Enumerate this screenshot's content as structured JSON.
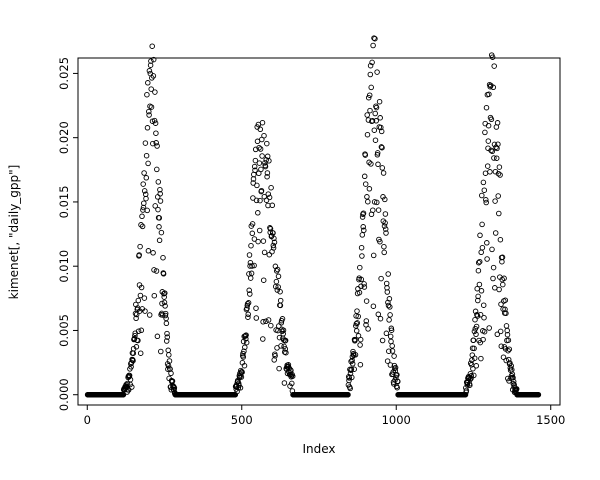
{
  "figure": {
    "background": "#ffffff",
    "point_color": "#000000"
  },
  "chart_data": {
    "type": "scatter",
    "title": "",
    "xlabel": "Index",
    "ylabel": "kimenet[, \"daily_gpp\"]",
    "xlim": [
      0,
      1500
    ],
    "ylim": [
      0,
      0.025
    ],
    "grid": false,
    "legend": false,
    "marker": {
      "shape": "open-circle",
      "color": "#000000"
    },
    "xticks": {
      "values": [
        0,
        500,
        1000,
        1500
      ],
      "labels": [
        "0",
        "500",
        "1000",
        "1500"
      ]
    },
    "yticks": {
      "values": [
        0,
        0.005,
        0.01,
        0.015,
        0.02,
        0.025
      ],
      "labels": [
        "0.000",
        "0.005",
        "0.010",
        "0.015",
        "0.020",
        "0.025"
      ]
    },
    "n_points": 1460,
    "baseline": 0,
    "pattern": "four seasonal peaks of daily GPP separated by long runs of zeros along the baseline",
    "seasons": [
      {
        "start": 115,
        "end": 290,
        "center": 210,
        "sigma_rise": 32,
        "sigma_fall": 26,
        "peak": 0.0252
      },
      {
        "start": 480,
        "end": 665,
        "center": 560,
        "sigma_rise": 30,
        "sigma_fall": 45,
        "peak": 0.0202
      },
      {
        "start": 845,
        "end": 1005,
        "center": 930,
        "sigma_rise": 35,
        "sigma_fall": 30,
        "peak": 0.0253
      },
      {
        "start": 1225,
        "end": 1395,
        "center": 1310,
        "sigma_rise": 32,
        "sigma_fall": 28,
        "peak": 0.0243
      }
    ],
    "seed": 42
  }
}
